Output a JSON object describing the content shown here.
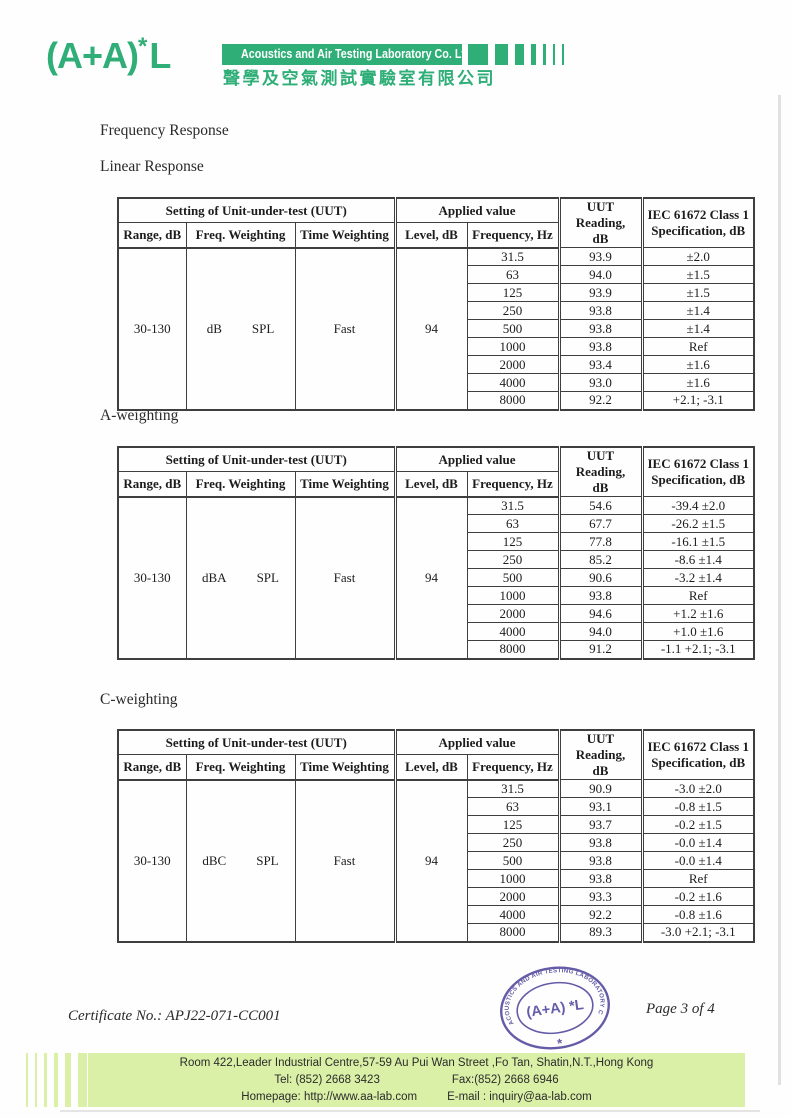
{
  "brand": {
    "logo_main": "(A+A)",
    "logo_sup": "*",
    "logo_tail": "L",
    "name_en": "Acoustics and Air Testing Laboratory Co. Ltd.",
    "name_zh": "聲學及空氣測試實驗室有限公司",
    "green": "#2fae77",
    "light_green": "#daf0a6",
    "stamp_purple": "#584fa0"
  },
  "headings": {
    "section_title": "Frequency Response",
    "table1_label": "Linear Response",
    "table2_label": "A-weighting",
    "table3_label": "C-weighting"
  },
  "table_header": {
    "group_setting": "Setting of Unit-under-test (UUT)",
    "group_applied": "Applied value",
    "col_range": "Range, dB",
    "col_freq_weighting": "Freq. Weighting",
    "col_time_weighting": "Time Weighting",
    "col_level": "Level, dB",
    "col_frequency": "Frequency, Hz",
    "col_reading_line1": "UUT Reading,",
    "col_reading_line2": "dB",
    "col_spec_line1": "IEC 61672 Class 1",
    "col_spec_line2": "Specification, dB"
  },
  "tables": [
    {
      "name": "linear-response",
      "range": "30-130",
      "freq_weighting": "dB",
      "freq_weighting_unit": "SPL",
      "time_weighting": "Fast",
      "level": "94",
      "rows": [
        {
          "freq": "31.5",
          "reading": "93.9",
          "spec": "±2.0"
        },
        {
          "freq": "63",
          "reading": "94.0",
          "spec": "±1.5"
        },
        {
          "freq": "125",
          "reading": "93.9",
          "spec": "±1.5"
        },
        {
          "freq": "250",
          "reading": "93.8",
          "spec": "±1.4"
        },
        {
          "freq": "500",
          "reading": "93.8",
          "spec": "±1.4"
        },
        {
          "freq": "1000",
          "reading": "93.8",
          "spec": "Ref"
        },
        {
          "freq": "2000",
          "reading": "93.4",
          "spec": "±1.6"
        },
        {
          "freq": "4000",
          "reading": "93.0",
          "spec": "±1.6"
        },
        {
          "freq": "8000",
          "reading": "92.2",
          "spec": "+2.1; -3.1"
        }
      ]
    },
    {
      "name": "a-weighting",
      "range": "30-130",
      "freq_weighting": "dBA",
      "freq_weighting_unit": "SPL",
      "time_weighting": "Fast",
      "level": "94",
      "rows": [
        {
          "freq": "31.5",
          "reading": "54.6",
          "spec": "-39.4 ±2.0"
        },
        {
          "freq": "63",
          "reading": "67.7",
          "spec": "-26.2 ±1.5"
        },
        {
          "freq": "125",
          "reading": "77.8",
          "spec": "-16.1 ±1.5"
        },
        {
          "freq": "250",
          "reading": "85.2",
          "spec": "-8.6 ±1.4"
        },
        {
          "freq": "500",
          "reading": "90.6",
          "spec": "-3.2 ±1.4"
        },
        {
          "freq": "1000",
          "reading": "93.8",
          "spec": "Ref"
        },
        {
          "freq": "2000",
          "reading": "94.6",
          "spec": "+1.2 ±1.6"
        },
        {
          "freq": "4000",
          "reading": "94.0",
          "spec": "+1.0 ±1.6"
        },
        {
          "freq": "8000",
          "reading": "91.2",
          "spec": "-1.1 +2.1; -3.1"
        }
      ]
    },
    {
      "name": "c-weighting",
      "range": "30-130",
      "freq_weighting": "dBC",
      "freq_weighting_unit": "SPL",
      "time_weighting": "Fast",
      "level": "94",
      "rows": [
        {
          "freq": "31.5",
          "reading": "90.9",
          "spec": "-3.0 ±2.0"
        },
        {
          "freq": "63",
          "reading": "93.1",
          "spec": "-0.8 ±1.5"
        },
        {
          "freq": "125",
          "reading": "93.7",
          "spec": "-0.2 ±1.5"
        },
        {
          "freq": "250",
          "reading": "93.8",
          "spec": "-0.0 ±1.4"
        },
        {
          "freq": "500",
          "reading": "93.8",
          "spec": "-0.0 ±1.4"
        },
        {
          "freq": "1000",
          "reading": "93.8",
          "spec": "Ref"
        },
        {
          "freq": "2000",
          "reading": "93.3",
          "spec": "-0.2 ±1.6"
        },
        {
          "freq": "4000",
          "reading": "92.2",
          "spec": "-0.8 ±1.6"
        },
        {
          "freq": "8000",
          "reading": "89.3",
          "spec": "-3.0 +2.1; -3.1"
        }
      ]
    }
  ],
  "stamp": {
    "ring_text": "ACOUSTICS AND AIR TESTING LABORATORY CO. LTD.",
    "center_text": "(A+A) *L",
    "bottom_star": "*"
  },
  "certificate": {
    "number_label": "Certificate No.: APJ22-071-CC001",
    "page_label": "Page 3 of 4"
  },
  "footer": {
    "address": "Room 422,Leader Industrial Centre,57-59 Au Pui Wan Street ,Fo Tan, Shatin,N.T.,Hong Kong",
    "tel": "Tel: (852) 2668 3423",
    "fax": "Fax:(852) 2668 6946",
    "homepage": "Homepage: http://www.aa-lab.com",
    "email": "E-mail : inquiry@aa-lab.com"
  }
}
